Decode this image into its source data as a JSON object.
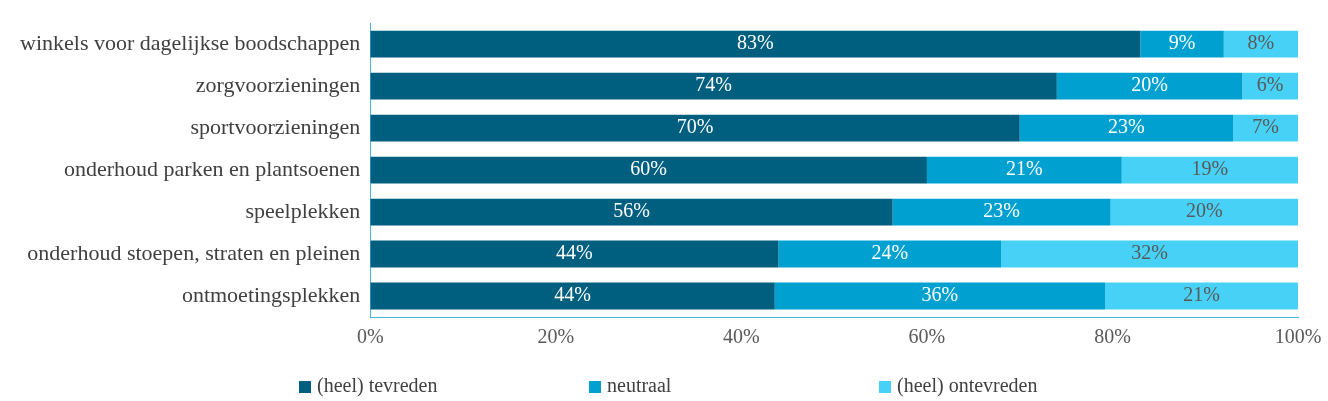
{
  "chart_data": {
    "type": "bar",
    "orientation": "horizontal",
    "stacked": true,
    "categories": [
      "winkels voor dagelijkse boodschappen",
      "zorgvoorzieningen",
      "sportvoorzieningen",
      "onderhoud parken en plantsoenen",
      "speelplekken",
      "onderhoud stoepen, straten en pleinen",
      "ontmoetingsplekken"
    ],
    "series": [
      {
        "name": "(heel) tevreden",
        "color": "#005f7f",
        "values": [
          83,
          74,
          70,
          60,
          56.3,
          44,
          43.6
        ],
        "value_labels": [
          "83%",
          "74%",
          "70%",
          "60%",
          "56%",
          "44%",
          "44%"
        ]
      },
      {
        "name": "neutraal",
        "color": "#00a1d1",
        "values": [
          9,
          20,
          23,
          21,
          23.5,
          24,
          35.6
        ],
        "value_labels": [
          "9%",
          "20%",
          "23%",
          "21%",
          "23%",
          "24%",
          "36%"
        ]
      },
      {
        "name": "(heel) ontevreden",
        "color": "#48d1f7",
        "values": [
          8,
          6,
          7,
          19,
          20.2,
          32,
          20.8
        ],
        "value_labels": [
          "8%",
          "6%",
          "7%",
          "19%",
          "20%",
          "32%",
          "21%"
        ]
      }
    ],
    "xlim": [
      0,
      100
    ],
    "xticks": [
      {
        "value": 0,
        "label": "0%"
      },
      {
        "value": 20,
        "label": "20%"
      },
      {
        "value": 40,
        "label": "40%"
      },
      {
        "value": 60,
        "label": "60%"
      },
      {
        "value": 80,
        "label": "80%"
      },
      {
        "value": 100,
        "label": "100%"
      }
    ],
    "grid": false,
    "legend": "bottom"
  }
}
